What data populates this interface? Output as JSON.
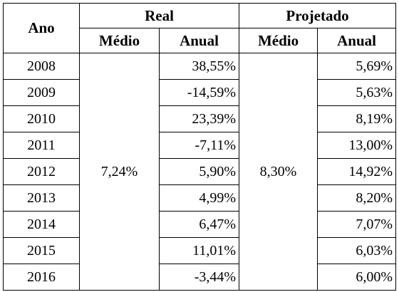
{
  "table": {
    "headers": {
      "ano": "Ano",
      "real": "Real",
      "projetado": "Projetado",
      "real_medio": "Médio",
      "real_anual": "Anual",
      "proj_medio": "Médio",
      "proj_anual": "Anual"
    },
    "real_medio_value": "7,24%",
    "proj_medio_value": "8,30%",
    "rows": [
      {
        "year": "2008",
        "real_anual": "38,55%",
        "proj_anual": "5,69%"
      },
      {
        "year": "2009",
        "real_anual": "-14,59%",
        "proj_anual": "5,63%"
      },
      {
        "year": "2010",
        "real_anual": "23,39%",
        "proj_anual": "8,19%"
      },
      {
        "year": "2011",
        "real_anual": "-7,11%",
        "proj_anual": "13,00%"
      },
      {
        "year": "2012",
        "real_anual": "5,90%",
        "proj_anual": "14,92%"
      },
      {
        "year": "2013",
        "real_anual": "4,99%",
        "proj_anual": "8,20%"
      },
      {
        "year": "2014",
        "real_anual": "6,47%",
        "proj_anual": "7,07%"
      },
      {
        "year": "2015",
        "real_anual": "11,01%",
        "proj_anual": "6,03%"
      },
      {
        "year": "2016",
        "real_anual": "-3,44%",
        "proj_anual": "6,00%"
      }
    ]
  }
}
